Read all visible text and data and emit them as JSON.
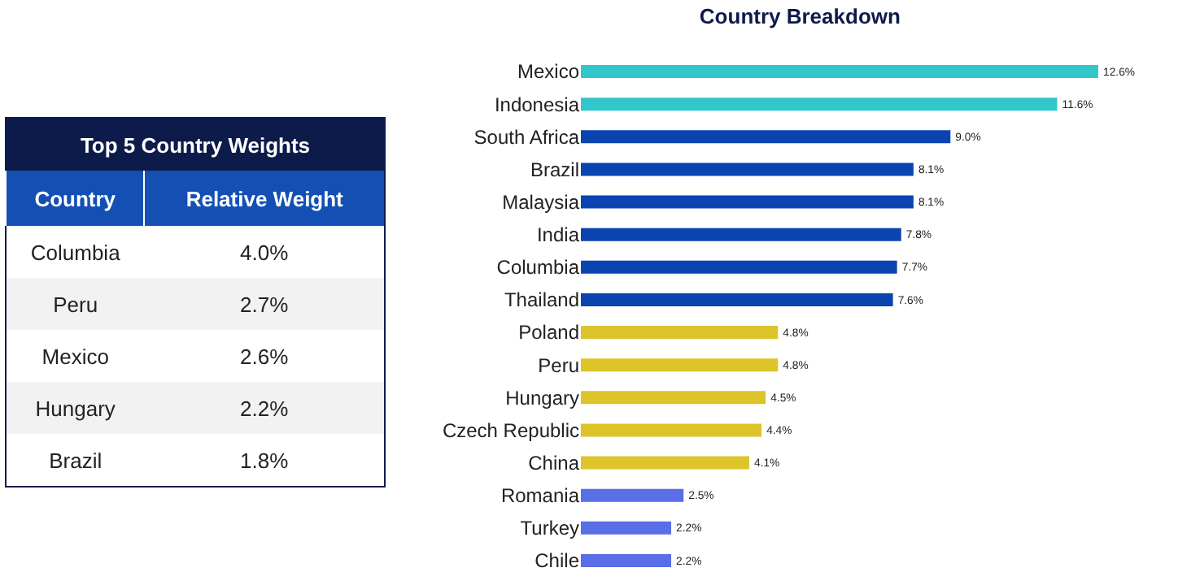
{
  "chart_data": [
    {
      "type": "other",
      "title": "Top 5 Country Weights",
      "xlabel": "Country",
      "ylabel": "Relative Weight",
      "categories": [
        "Columbia",
        "Peru",
        "Mexico",
        "Hungary",
        "Brazil"
      ],
      "value_labels": [
        "4.0%",
        "2.7%",
        "2.6%",
        "2.2%",
        "1.8%"
      ]
    },
    {
      "type": "bar",
      "title": "Country Breakdown",
      "orientation": "horizontal",
      "categories": [
        "Mexico",
        "Indonesia",
        "South Africa",
        "Brazil",
        "Malaysia",
        "India",
        "Columbia",
        "Thailand",
        "Poland",
        "Peru",
        "Hungary",
        "Czech Republic",
        "China",
        "Romania",
        "Turkey",
        "Chile"
      ],
      "values": [
        12.6,
        11.6,
        9.0,
        8.1,
        8.1,
        7.8,
        7.7,
        7.6,
        4.8,
        4.8,
        4.5,
        4.4,
        4.1,
        2.5,
        2.2,
        2.2
      ],
      "value_labels": [
        "12.6%",
        "11.6%",
        "9.0%",
        "8.1%",
        "8.1%",
        "7.8%",
        "7.7%",
        "7.6%",
        "4.8%",
        "4.8%",
        "4.5%",
        "4.4%",
        "4.1%",
        "2.5%",
        "2.2%",
        "2.2%"
      ],
      "colors": [
        "#33c6cc",
        "#33c6cc",
        "#0a44b0",
        "#0a44b0",
        "#0a44b0",
        "#0a44b0",
        "#0a44b0",
        "#0a44b0",
        "#dcc42a",
        "#dcc42a",
        "#dcc42a",
        "#dcc42a",
        "#dcc42a",
        "#5a6ee8",
        "#5a6ee8",
        "#5a6ee8"
      ]
    }
  ]
}
